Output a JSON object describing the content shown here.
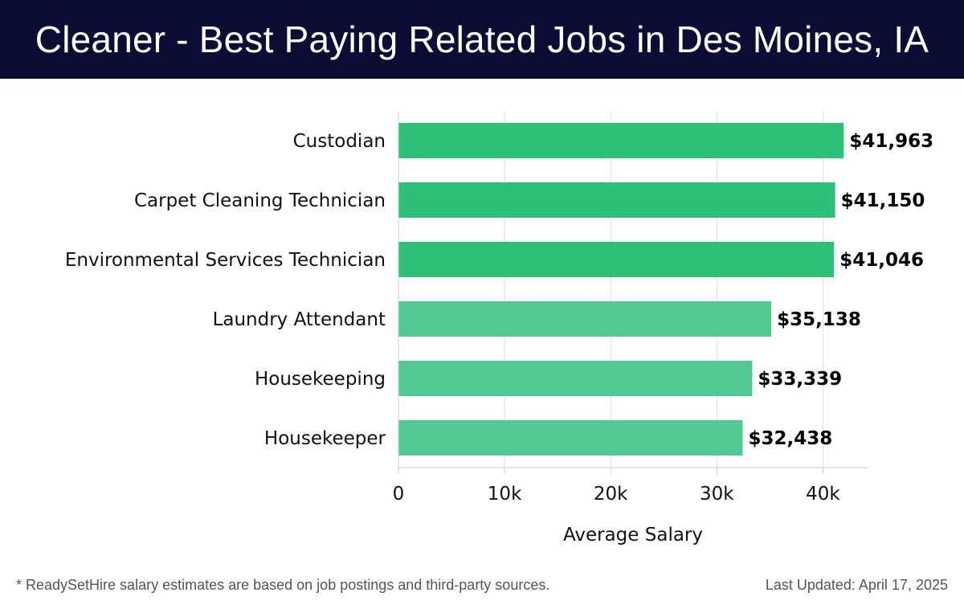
{
  "header": {
    "title": "Cleaner - Best Paying Related Jobs in Des Moines, IA"
  },
  "footer": {
    "note": "* ReadySetHire salary estimates are based on job postings and third-party sources.",
    "updated": "Last Updated: April 17, 2025"
  },
  "colors": {
    "header_bg": "#0b0d35",
    "bar_dark": "#2ebf79",
    "bar_light": "#52c992",
    "grid": "#dddddd"
  },
  "chart_data": {
    "type": "bar",
    "orientation": "horizontal",
    "categories": [
      "Custodian",
      "Carpet Cleaning Technician",
      "Environmental Services Technician",
      "Laundry Attendant",
      "Housekeeping",
      "Housekeeper"
    ],
    "values": [
      41963,
      41150,
      41046,
      35138,
      33339,
      32438
    ],
    "value_labels": [
      "$41,963",
      "$41,150",
      "$41,046",
      "$35,138",
      "$33,339",
      "$32,438"
    ],
    "xlabel": "Average Salary",
    "ylabel": "",
    "xticks": [
      0,
      10000,
      20000,
      30000,
      40000
    ],
    "xtick_labels": [
      "0",
      "10k",
      "20k",
      "30k",
      "40k"
    ],
    "xlim": [
      0,
      44000
    ],
    "grid": true
  }
}
